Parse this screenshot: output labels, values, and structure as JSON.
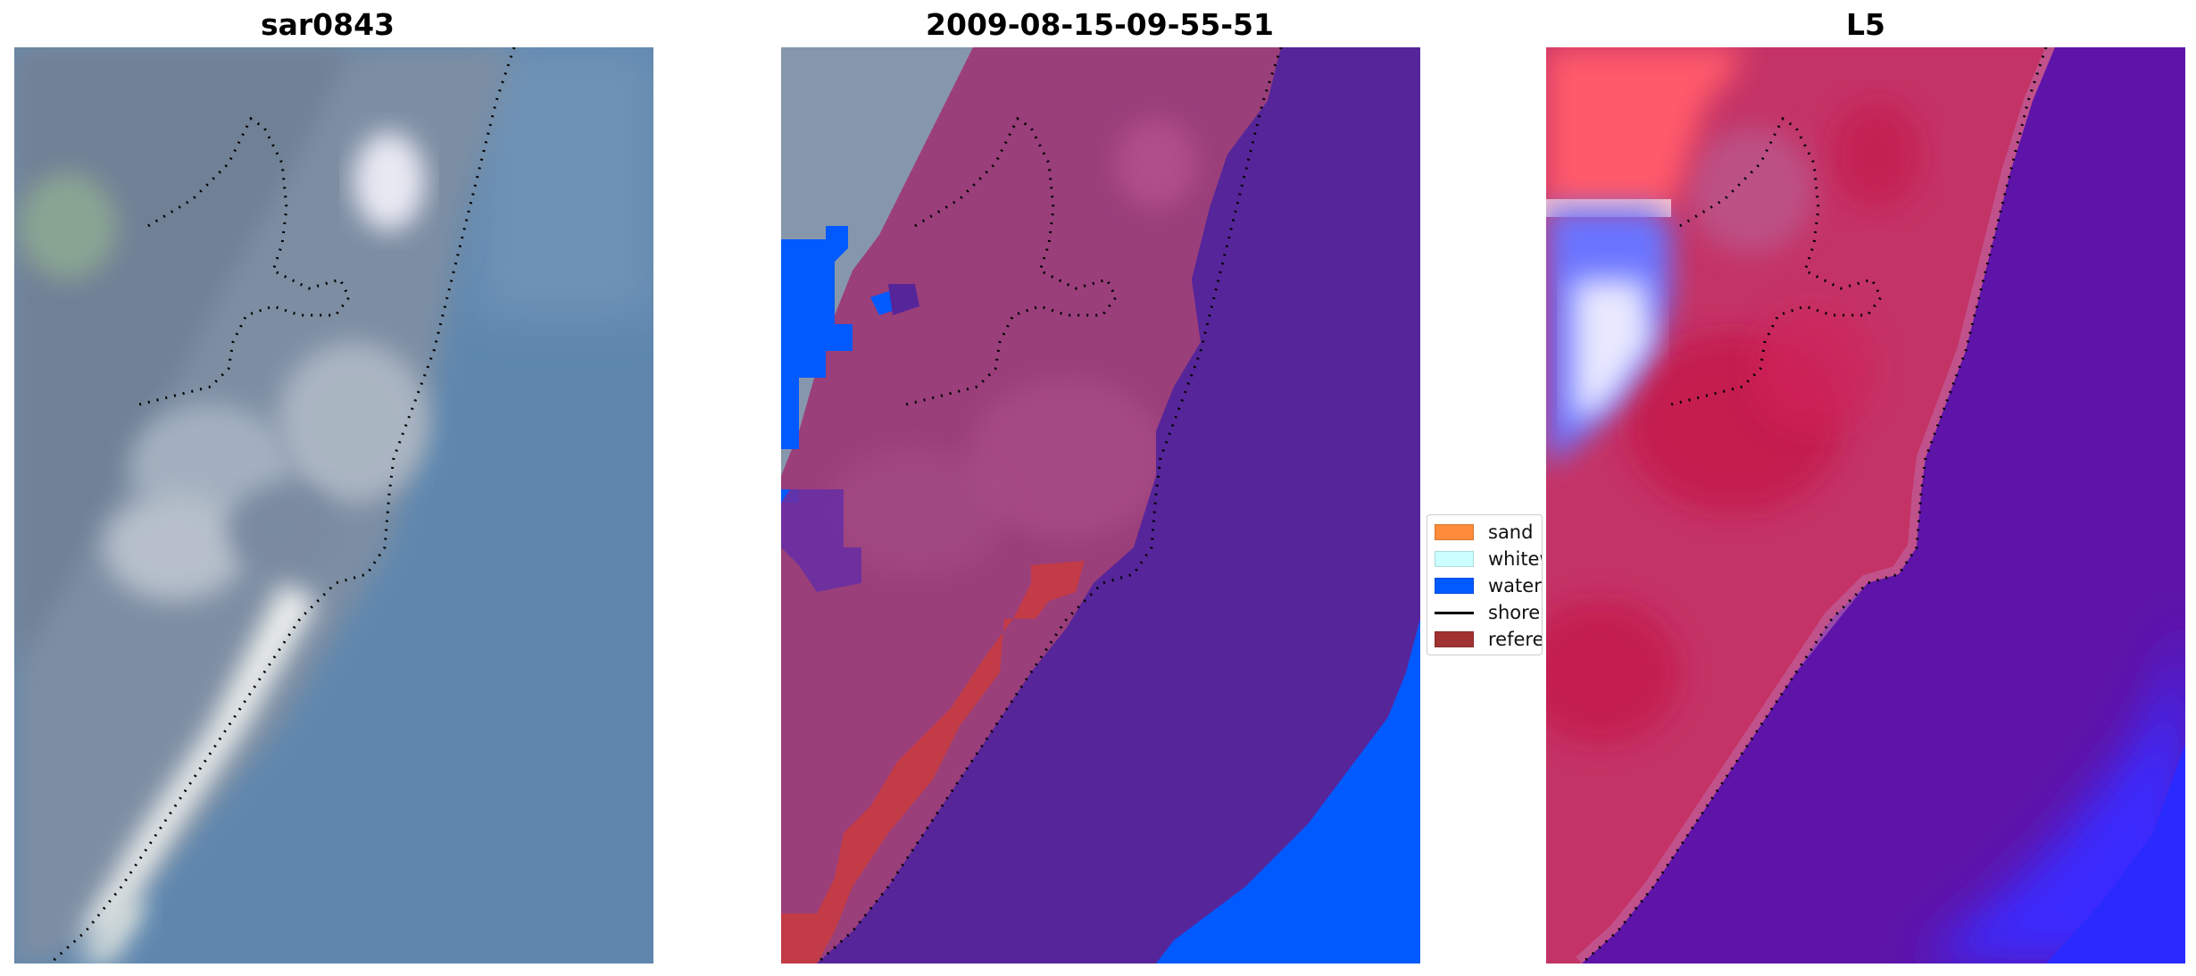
{
  "panels": [
    {
      "title": "sar0843",
      "description_key": "rgb-image"
    },
    {
      "title": "2009-08-15-09-55-51",
      "description_key": "classified-image"
    },
    {
      "title": "L5",
      "description_key": "index-image"
    }
  ],
  "legend": {
    "items": [
      {
        "label": "sand",
        "color": "#ff8c3a",
        "kind": "patch"
      },
      {
        "label": "whitewater",
        "color": "#ccffff",
        "kind": "patch"
      },
      {
        "label": "water",
        "color": "#005aff",
        "kind": "patch"
      },
      {
        "label": "shoreline",
        "color": "#000000",
        "kind": "line"
      },
      {
        "label": "reference",
        "color": "#a03232",
        "kind": "patch"
      }
    ]
  },
  "colors": {
    "rgb_water": "#5f86ad",
    "rgb_land": "#8696aa",
    "class_sand_overlay": "#9a3f7a",
    "class_sea": "#57259a",
    "class_water": "#005aff",
    "class_reference": "#c23b47",
    "index_red": "#c61a4a",
    "index_purple": "#5b0fa6",
    "index_blue": "#3426ff"
  }
}
